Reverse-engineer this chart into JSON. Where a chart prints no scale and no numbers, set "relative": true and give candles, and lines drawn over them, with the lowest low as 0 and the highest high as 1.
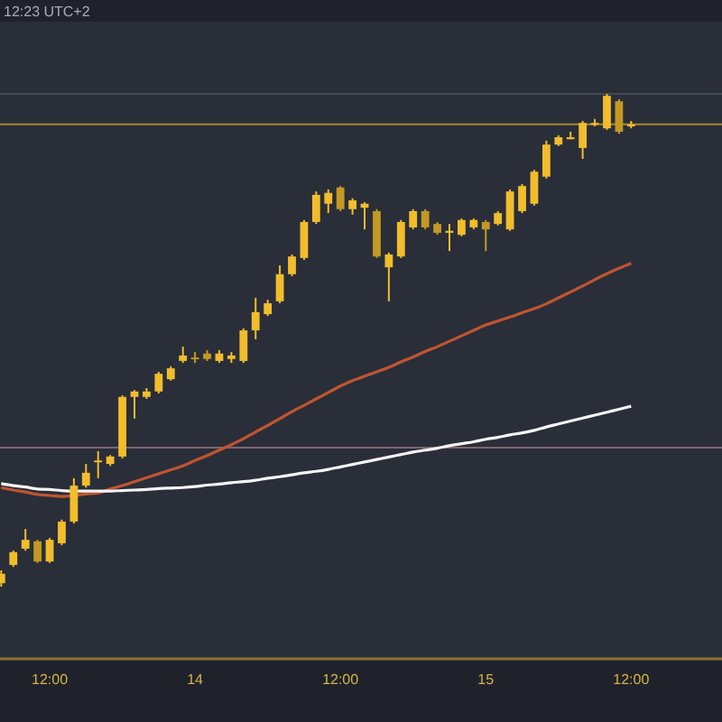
{
  "chart_data": {
    "type": "candlestick",
    "relative": true,
    "colors": [
      "#f2bd2c",
      "#f2bd2c",
      "#f2bd2c",
      "#c39924",
      "#f2bd2c",
      "#f2bd2c",
      "#f2bd2c",
      "#f2bd2c",
      "#f2bd2c",
      "#f2bd2c",
      "#f2bd2c",
      "#f2bd2c",
      "#f2bd2c",
      "#f2bd2c",
      "#f2bd2c",
      "#f2bd2c",
      "#c39924",
      "#c39924",
      "#f2bd2c",
      "#f2bd2c",
      "#f2bd2c",
      "#f2bd2c",
      "#f2bd2c",
      "#f2bd2c",
      "#f2bd2c",
      "#f2bd2c",
      "#f2bd2c",
      "#f2bd2c",
      "#c39924",
      "#f2bd2c",
      "#f2bd2c",
      "#c39924",
      "#f2bd2c",
      "#f2bd2c",
      "#f2bd2c",
      "#c39924",
      "#c39924",
      "#f2bd2c",
      "#f2bd2c",
      "#f2bd2c",
      "#c39924",
      "#f2bd2c",
      "#f2bd2c",
      "#f2bd2c",
      "#f2bd2c",
      "#f2bd2c",
      "#f2bd2c",
      "#f2bd2c",
      "#f2bd2c",
      "#f2bd2c",
      "#f2bd2c",
      "#c39924",
      "#f2bd2c"
    ],
    "annotations": [
      "12:23 UTC+2"
    ],
    "categories": [
      null,
      null,
      null,
      null,
      "12:00",
      null,
      null,
      null,
      null,
      null,
      null,
      null,
      null,
      null,
      null,
      null,
      "14",
      null,
      null,
      null,
      null,
      null,
      null,
      null,
      null,
      null,
      null,
      null,
      "12:00",
      null,
      null,
      null,
      null,
      null,
      null,
      null,
      null,
      null,
      null,
      null,
      "15",
      null,
      null,
      null,
      null,
      null,
      null,
      null,
      null,
      null,
      null,
      null,
      "12:00"
    ],
    "ohlc": [
      [
        0.007,
        0.033,
        0,
        0.026
      ],
      [
        0.044,
        0.073,
        0.04,
        0.07
      ],
      [
        0.077,
        0.117,
        0.073,
        0.095
      ],
      [
        0.092,
        0.095,
        0.048,
        0.051
      ],
      [
        0.051,
        0.099,
        0.048,
        0.095
      ],
      [
        0.088,
        0.136,
        0.084,
        0.132
      ],
      [
        0.132,
        0.22,
        0.128,
        0.205
      ],
      [
        0.205,
        0.249,
        0.201,
        0.231
      ],
      [
        0.253,
        0.275,
        0.22,
        0.256
      ],
      [
        0.249,
        0.267,
        0.245,
        0.264
      ],
      [
        0.264,
        0.388,
        0.26,
        0.385
      ],
      [
        0.385,
        0.399,
        0.341,
        0.396
      ],
      [
        0.385,
        0.403,
        0.381,
        0.396
      ],
      [
        0.396,
        0.436,
        0.392,
        0.432
      ],
      [
        0.421,
        0.447,
        0.418,
        0.443
      ],
      [
        0.458,
        0.487,
        0.454,
        0.469
      ],
      [
        0.465,
        0.476,
        0.454,
        0.462
      ],
      [
        0.473,
        0.48,
        0.458,
        0.462
      ],
      [
        0.458,
        0.48,
        0.454,
        0.473
      ],
      [
        0.462,
        0.476,
        0.454,
        0.469
      ],
      [
        0.458,
        0.524,
        0.454,
        0.52
      ],
      [
        0.52,
        0.586,
        0.502,
        0.557
      ],
      [
        0.553,
        0.582,
        0.549,
        0.575
      ],
      [
        0.579,
        0.652,
        0.575,
        0.634
      ],
      [
        0.634,
        0.674,
        0.63,
        0.67
      ],
      [
        0.667,
        0.744,
        0.663,
        0.74
      ],
      [
        0.74,
        0.802,
        0.736,
        0.795
      ],
      [
        0.777,
        0.806,
        0.758,
        0.799
      ],
      [
        0.81,
        0.813,
        0.762,
        0.766
      ],
      [
        0.766,
        0.788,
        0.755,
        0.784
      ],
      [
        0.769,
        0.78,
        0.725,
        0.777
      ],
      [
        0.762,
        0.766,
        0.667,
        0.67
      ],
      [
        0.648,
        0.678,
        0.579,
        0.674
      ],
      [
        0.67,
        0.744,
        0.667,
        0.74
      ],
      [
        0.729,
        0.766,
        0.725,
        0.762
      ],
      [
        0.762,
        0.766,
        0.725,
        0.729
      ],
      [
        0.736,
        0.74,
        0.714,
        0.718
      ],
      [
        0.718,
        0.736,
        0.681,
        0.722
      ],
      [
        0.714,
        0.747,
        0.711,
        0.744
      ],
      [
        0.729,
        0.747,
        0.725,
        0.744
      ],
      [
        0.74,
        0.744,
        0.681,
        0.725
      ],
      [
        0.736,
        0.762,
        0.733,
        0.758
      ],
      [
        0.725,
        0.806,
        0.722,
        0.802
      ],
      [
        0.762,
        0.817,
        0.758,
        0.813
      ],
      [
        0.777,
        0.846,
        0.773,
        0.842
      ],
      [
        0.832,
        0.905,
        0.828,
        0.897
      ],
      [
        0.897,
        0.916,
        0.894,
        0.912
      ],
      [
        0.908,
        0.923,
        0.908,
        0.912
      ],
      [
        0.89,
        0.945,
        0.868,
        0.941
      ],
      [
        0.938,
        0.949,
        0.934,
        0.941
      ],
      [
        0.93,
        1,
        0.927,
        0.996
      ],
      [
        0.985,
        0.989,
        0.919,
        0.923
      ],
      [
        0.934,
        0.945,
        0.93,
        0.938
      ]
    ],
    "series": [
      {
        "type": "line",
        "color": "#c0552f",
        "values": [
          0.201,
          0.196,
          0.192,
          0.187,
          0.185,
          0.183,
          0.185,
          0.188,
          0.19,
          0.198,
          0.205,
          0.213,
          0.221,
          0.229,
          0.237,
          0.245,
          0.256,
          0.266,
          0.277,
          0.288,
          0.3,
          0.314,
          0.327,
          0.341,
          0.355,
          0.368,
          0.381,
          0.394,
          0.407,
          0.418,
          0.427,
          0.436,
          0.445,
          0.456,
          0.466,
          0.477,
          0.487,
          0.498,
          0.509,
          0.52,
          0.531,
          0.539,
          0.547,
          0.556,
          0.564,
          0.574,
          0.586,
          0.598,
          0.61,
          0.623,
          0.635,
          0.646,
          0.656
        ]
      },
      {
        "type": "line",
        "color": "#f4f4f4",
        "values": [
          0.209,
          0.205,
          0.202,
          0.198,
          0.197,
          0.195,
          0.194,
          0.194,
          0.194,
          0.194,
          0.195,
          0.196,
          0.197,
          0.199,
          0.2,
          0.201,
          0.203,
          0.206,
          0.208,
          0.211,
          0.213,
          0.216,
          0.22,
          0.223,
          0.227,
          0.231,
          0.234,
          0.238,
          0.243,
          0.248,
          0.253,
          0.258,
          0.263,
          0.268,
          0.273,
          0.277,
          0.281,
          0.286,
          0.29,
          0.294,
          0.299,
          0.303,
          0.308,
          0.312,
          0.317,
          0.324,
          0.33,
          0.336,
          0.342,
          0.348,
          0.354,
          0.36,
          0.366
        ]
      }
    ],
    "ref_lines": [
      {
        "axis": "y",
        "value": 0.938,
        "color": "#a88a35"
      },
      {
        "axis": "y",
        "value": 0.282,
        "color": "#7d6670"
      },
      {
        "axis": "y",
        "value": 1,
        "color": "#454a57"
      }
    ]
  }
}
